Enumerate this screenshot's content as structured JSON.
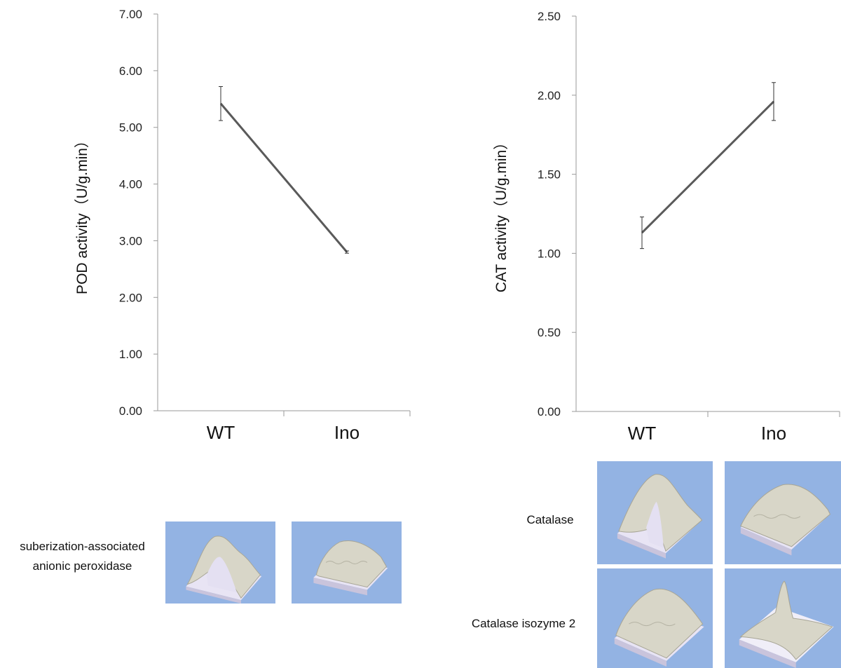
{
  "chart_data": [
    {
      "type": "line",
      "ylabel": "POD activity（U/g.min）",
      "categories": [
        "WT",
        "Ino"
      ],
      "yticks": [
        "0.00",
        "1.00",
        "2.00",
        "3.00",
        "4.00",
        "5.00",
        "6.00",
        "7.00"
      ],
      "ylim": [
        0,
        7
      ],
      "series": [
        {
          "values": [
            5.42,
            2.8
          ],
          "error": [
            0.3,
            0.02
          ]
        }
      ],
      "grid": false
    },
    {
      "type": "line",
      "ylabel": "CAT activity（U/g.min）",
      "categories": [
        "WT",
        "Ino"
      ],
      "yticks": [
        "0.00",
        "0.50",
        "1.00",
        "1.50",
        "2.00",
        "2.50"
      ],
      "ylim": [
        0,
        2.5
      ],
      "series": [
        {
          "values": [
            1.13,
            1.96
          ],
          "error": [
            0.1,
            0.12
          ]
        }
      ],
      "grid": false
    }
  ],
  "protein_panels": {
    "pod_label_line1": "suberization-associated",
    "pod_label_line2": "anionic peroxidase",
    "catalase_label": "Catalase",
    "catalase2_label": "Catalase isozyme 2",
    "panel_background": "#93b3e3",
    "surface_color": "#d8d6c8"
  }
}
